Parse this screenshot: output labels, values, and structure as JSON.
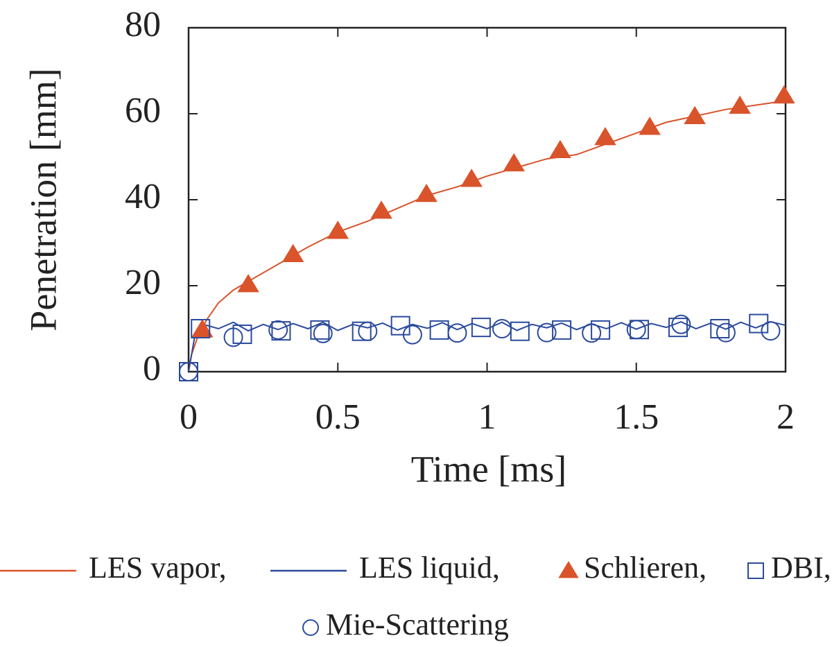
{
  "chart_data": {
    "type": "line",
    "xlabel": "Time [ms]",
    "ylabel": "Penetration [mm]",
    "xlim": [
      0,
      2
    ],
    "ylim": [
      0,
      80
    ],
    "xticks": [
      0,
      0.5,
      1,
      1.5,
      2
    ],
    "yticks": [
      0,
      20,
      40,
      60,
      80
    ],
    "grid": false,
    "legend": "bottom",
    "series": [
      {
        "name": "LES vapor,",
        "type": "line",
        "color": "#d9532b",
        "x": [
          0,
          0.01,
          0.03,
          0.06,
          0.1,
          0.15,
          0.2,
          0.3,
          0.4,
          0.5,
          0.6,
          0.7,
          0.8,
          0.9,
          1.0,
          1.1,
          1.2,
          1.3,
          1.4,
          1.5,
          1.6,
          1.7,
          1.8,
          1.9,
          2.0
        ],
        "values": [
          0,
          4,
          8,
          12,
          16,
          19,
          21,
          25,
          29,
          32.5,
          35,
          38,
          41,
          43,
          45.5,
          47.5,
          49.5,
          50.5,
          53,
          55.5,
          58,
          59.5,
          61,
          62,
          63
        ]
      },
      {
        "name": "LES liquid,",
        "type": "line",
        "color": "#2a4a9c",
        "x": [
          0,
          0.02,
          0.05,
          0.1,
          0.15,
          0.2,
          0.25,
          0.3,
          0.35,
          0.4,
          0.45,
          0.5,
          0.55,
          0.6,
          0.65,
          0.7,
          0.75,
          0.8,
          0.85,
          0.9,
          0.95,
          1.0,
          1.05,
          1.1,
          1.15,
          1.2,
          1.25,
          1.3,
          1.35,
          1.4,
          1.45,
          1.5,
          1.55,
          1.6,
          1.65,
          1.7,
          1.75,
          1.8,
          1.85,
          1.9,
          1.95,
          2.0
        ],
        "values": [
          0,
          8,
          11,
          10,
          11.5,
          9.5,
          11,
          9.8,
          11.2,
          10,
          11.5,
          9.6,
          11,
          10.2,
          11.3,
          9.7,
          11,
          10.1,
          11.4,
          9.8,
          11.2,
          10,
          11.5,
          9.6,
          11,
          10.2,
          11.3,
          9.8,
          11.1,
          10,
          11.4,
          9.9,
          11.2,
          10.3,
          11.6,
          10,
          11.3,
          9.9,
          11.5,
          10.2,
          11.6,
          10.8
        ]
      },
      {
        "name": "Schlieren,",
        "type": "scatter",
        "marker": "triangle",
        "color": "#d9532b",
        "x": [
          0.046,
          0.2,
          0.35,
          0.5,
          0.646,
          0.797,
          0.948,
          1.09,
          1.245,
          1.396,
          1.545,
          1.696,
          1.847,
          1.995
        ],
        "values": [
          9.8,
          20.3,
          27.3,
          32.7,
          37.4,
          41.3,
          44.8,
          48.4,
          51.5,
          54.5,
          56.9,
          59.4,
          61.8,
          64.2
        ]
      },
      {
        "name": "DBI,",
        "type": "scatter",
        "marker": "square",
        "color": "#2a4a9c",
        "x": [
          0,
          0.04,
          0.18,
          0.31,
          0.44,
          0.58,
          0.71,
          0.84,
          0.98,
          1.11,
          1.25,
          1.38,
          1.51,
          1.64,
          1.78,
          1.91
        ],
        "values": [
          0,
          10,
          8.7,
          9.5,
          9.7,
          9.4,
          10.7,
          9.7,
          10.3,
          9.4,
          9.7,
          9.7,
          9.8,
          10.3,
          10,
          11.2
        ]
      },
      {
        "name": "Mie-Scattering",
        "type": "scatter",
        "marker": "circle",
        "color": "#2a4a9c",
        "x": [
          0,
          0.15,
          0.3,
          0.45,
          0.6,
          0.75,
          0.9,
          1.05,
          1.2,
          1.35,
          1.5,
          1.65,
          1.8,
          1.95
        ],
        "values": [
          0,
          8,
          9.7,
          8.9,
          9.4,
          8.6,
          9,
          10,
          9.1,
          9,
          9.8,
          11,
          9.1,
          9.5
        ]
      }
    ]
  }
}
